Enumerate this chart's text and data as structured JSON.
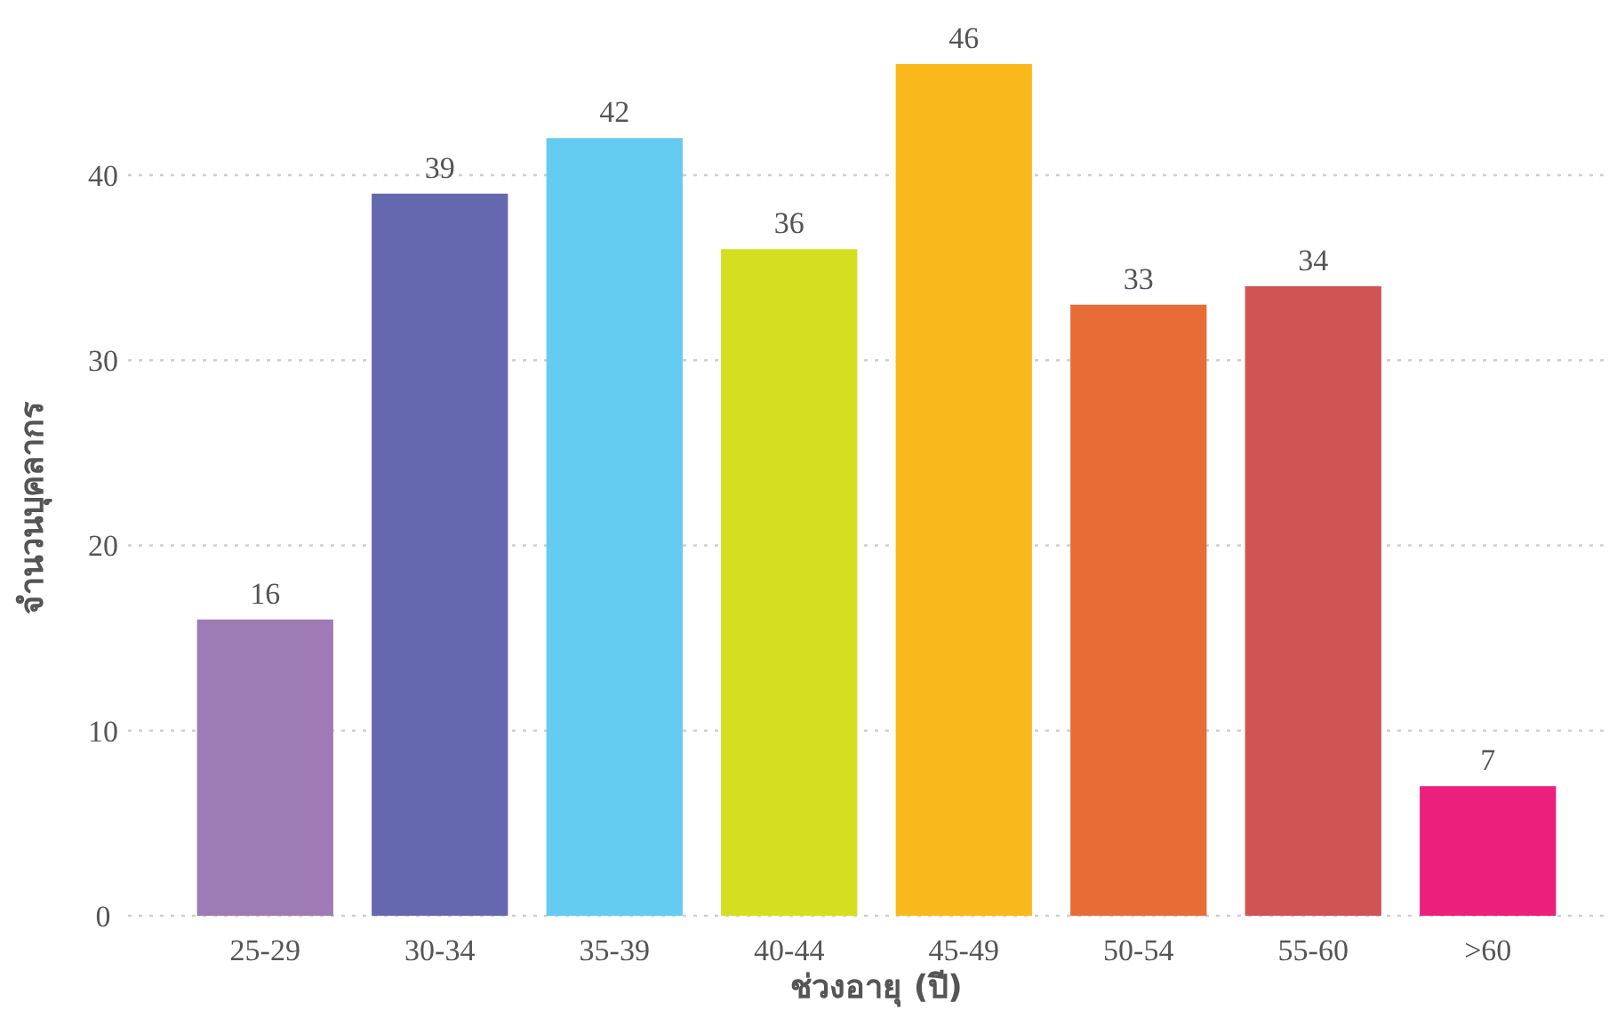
{
  "chart_data": {
    "type": "bar",
    "xlabel": "ช่วงอายุ (ปี)",
    "ylabel": "จำนวนบุคลากร",
    "categories": [
      "25-29",
      "30-34",
      "35-39",
      "40-44",
      "45-49",
      "50-54",
      "55-60",
      ">60"
    ],
    "values": [
      16,
      39,
      42,
      36,
      46,
      33,
      34,
      7
    ],
    "colors": [
      "#9e7bb5",
      "#6568ae",
      "#64cbf1",
      "#d5df20",
      "#f9b91b",
      "#e86c35",
      "#d05454",
      "#ec1f7c"
    ],
    "ylim": [
      0,
      46
    ],
    "yticks": [
      0,
      10,
      20,
      30,
      40
    ],
    "grid": "y",
    "data_labels": true
  }
}
